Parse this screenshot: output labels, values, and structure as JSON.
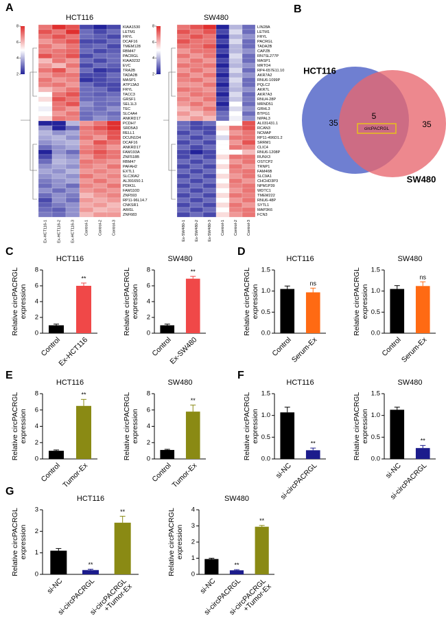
{
  "chart_data": [
    {
      "type": "heatmap",
      "panel": "A",
      "title": "HCT116",
      "rows": [
        "KIAA1530",
        "LETM1",
        "FRYL",
        "DCAF16",
        "TMEM128",
        "RBM47",
        "PACRGL",
        "KIAA0232",
        "EVC",
        "TRA2B",
        "TADA2B",
        "MASP1",
        "ATP13A3",
        "FRYL",
        "TACC3",
        "GRSF1",
        "SEL1L3",
        "TEC",
        "SLC4A4",
        "ANKRD17",
        "PCDH7",
        "SRD5A3",
        "RELL1",
        "DCUN1D4",
        "DCAF16",
        "ANKRD17",
        "FAM193A",
        "ZNF518B",
        "RBM47",
        "PAFAH2",
        "EXTL1",
        "SLC30A2",
        "AL391650.1",
        "PDIK1L",
        "FAM110D",
        "ZNF593",
        "RP11-96L14.7",
        "CNKSR1",
        "AIM1L",
        "ZNF683"
      ],
      "columns": [
        "Ex-HCT116-1",
        "Ex-HCT116-2",
        "Ex-HCT116-3",
        "Control-1",
        "Control-2",
        "Control-3"
      ],
      "values": [
        [
          7,
          8,
          7.5,
          2.5,
          2,
          2.5
        ],
        [
          7.5,
          7,
          8,
          3,
          2.5,
          3
        ],
        [
          7,
          7.5,
          7,
          3,
          2.8,
          2.5
        ],
        [
          6.5,
          7,
          7.5,
          2.5,
          2.5,
          3
        ],
        [
          7,
          6.5,
          7,
          2.8,
          3,
          2.5
        ],
        [
          6.8,
          7,
          7.2,
          3,
          2.5,
          2.8
        ],
        [
          7.5,
          7,
          7.5,
          2.5,
          3,
          3
        ],
        [
          6,
          7,
          6.5,
          3,
          2.5,
          3
        ],
        [
          6.5,
          6,
          7,
          2.5,
          3,
          2.8
        ],
        [
          7,
          7.5,
          6.5,
          3,
          2.2,
          2.5
        ],
        [
          6.5,
          7,
          7,
          2.5,
          2.5,
          3
        ],
        [
          7,
          6.5,
          6.8,
          2.2,
          2.5,
          2.8
        ],
        [
          6.8,
          7,
          6.5,
          3,
          2.5,
          2.5
        ],
        [
          6,
          6.5,
          7,
          3,
          3,
          2.5
        ],
        [
          5,
          7,
          7.5,
          3,
          2.8,
          3
        ],
        [
          5.5,
          7.5,
          7,
          3,
          3,
          3.2
        ],
        [
          5,
          7,
          7.5,
          3.5,
          3,
          3
        ],
        [
          4.8,
          7,
          6.5,
          3.2,
          3,
          3.5
        ],
        [
          5,
          6.5,
          7,
          3,
          3.2,
          3
        ],
        [
          5.5,
          7,
          6.8,
          3,
          3.5,
          3.2
        ],
        [
          2,
          1.5,
          4,
          6.5,
          7,
          8
        ],
        [
          3.5,
          2,
          3,
          7,
          7.5,
          8
        ],
        [
          4,
          3.5,
          3.8,
          6.8,
          7,
          7.5
        ],
        [
          3.8,
          4,
          3.5,
          7,
          6.5,
          7.5
        ],
        [
          3.5,
          3.8,
          4,
          6.5,
          7.5,
          7
        ],
        [
          3,
          3.5,
          3.8,
          6.8,
          7,
          6.5
        ],
        [
          2,
          3.5,
          3,
          7,
          7.5,
          7
        ],
        [
          2.5,
          3.8,
          3.5,
          6.5,
          7.2,
          7
        ],
        [
          3,
          4,
          3.8,
          7,
          6.8,
          6.5
        ],
        [
          3.5,
          3.8,
          3.5,
          6.8,
          6.5,
          7
        ],
        [
          3.8,
          3.5,
          4,
          6.5,
          6.8,
          6.5
        ],
        [
          3.5,
          3.8,
          3.5,
          7,
          6.5,
          6.8
        ],
        [
          3.2,
          3.5,
          3.8,
          6.5,
          7,
          6.5
        ],
        [
          3,
          3.5,
          3,
          6.8,
          6.5,
          7
        ],
        [
          3.5,
          3,
          3.5,
          6.5,
          6.8,
          6.5
        ],
        [
          3,
          3.5,
          3.2,
          6,
          6.5,
          6.8
        ],
        [
          2.5,
          3.5,
          3,
          6.5,
          6.2,
          6.5
        ],
        [
          2.8,
          3.2,
          3.5,
          6.2,
          6.5,
          6
        ],
        [
          3,
          2.8,
          3.5,
          6.5,
          6,
          6.2
        ],
        [
          3.2,
          3,
          3.5,
          6,
          6.5,
          6.5
        ]
      ],
      "clim": [
        2,
        8
      ],
      "cticks": [
        2,
        4,
        6,
        8
      ],
      "colors": [
        "#23239a",
        "#ffffff",
        "#e0302f"
      ],
      "highlight": "PACRGL",
      "highlight_color": "#ff0000"
    },
    {
      "type": "heatmap",
      "title": "SW480",
      "rows": [
        "LIN28A",
        "LETM1",
        "FRYL",
        "PACRGL",
        "TADA2B",
        "CAPZB",
        "RN7SL277P",
        "MASP1",
        "MRTO4",
        "RP4-657E11.10",
        "AKR7A2",
        "RNU6-1099P",
        "PQLC2",
        "AKR7L",
        "AKR7A3",
        "RNU4-28P",
        "MRND51",
        "GRHL3",
        "BTPG1",
        "NIPAL3",
        "AL031431.1",
        "RCAN3",
        "NCMAP",
        "RP11-496D1.2",
        "SRRM1",
        "CLIC4",
        "RNU6-1208P",
        "RUNX3",
        "OSTCP2",
        "TRNP1",
        "FAM46B",
        "SLC9A1",
        "CHCHD3P3",
        "NPM1P39",
        "WDTC1",
        "TMEM222",
        "RNU6-48P",
        "SYTL1",
        "MAP3K6",
        "FCN3"
      ],
      "columns": [
        "Ex-SW480-1",
        "Ex-SW480-2",
        "Ex-SW480-3",
        "Control-1",
        "Control-2",
        "Control-3"
      ],
      "values": [
        [
          7,
          7.5,
          8,
          2,
          4,
          3
        ],
        [
          7.5,
          7,
          7.5,
          2.5,
          4.5,
          3
        ],
        [
          7,
          7.5,
          7,
          2,
          4,
          3.5
        ],
        [
          7.5,
          7,
          7,
          2.5,
          4.5,
          3
        ],
        [
          7,
          7,
          7.5,
          2,
          4,
          3
        ],
        [
          6.5,
          7,
          7,
          2.5,
          4,
          3.5
        ],
        [
          7,
          6.5,
          7,
          2,
          4.5,
          3
        ],
        [
          6.5,
          7,
          6.5,
          2.5,
          4.2,
          3
        ],
        [
          7,
          6.8,
          7,
          2,
          4,
          3.5
        ],
        [
          6.5,
          7,
          6.5,
          2.5,
          4.5,
          3
        ],
        [
          7,
          6.5,
          7,
          2,
          4,
          3.5
        ],
        [
          6.8,
          7,
          6.5,
          2.5,
          4.5,
          3
        ],
        [
          6.5,
          6.5,
          7,
          2,
          4.2,
          3
        ],
        [
          7,
          6.8,
          6.5,
          2.5,
          4,
          3.5
        ],
        [
          6.5,
          7,
          6.8,
          2,
          4.5,
          3
        ],
        [
          6.8,
          6.5,
          7,
          2.5,
          4.2,
          3.2
        ],
        [
          6.5,
          7,
          6.5,
          2,
          5,
          3
        ],
        [
          6,
          6.5,
          7,
          2.5,
          4.5,
          3.5
        ],
        [
          6.5,
          6,
          6.5,
          3,
          5,
          3
        ],
        [
          6,
          6.5,
          6,
          3,
          4.8,
          3.5
        ],
        [
          3,
          2.5,
          3,
          5,
          5,
          7.5
        ],
        [
          3,
          2.5,
          2.5,
          5.5,
          7,
          7.5
        ],
        [
          2.5,
          3,
          2.5,
          5,
          6.5,
          7
        ],
        [
          3,
          2.5,
          3,
          4.5,
          7,
          7
        ],
        [
          2.5,
          3,
          2.5,
          5,
          6.5,
          7.5
        ],
        [
          3,
          2.5,
          3,
          5,
          7,
          6.8
        ],
        [
          2.5,
          2,
          2.5,
          5,
          5,
          6
        ],
        [
          2.5,
          3,
          2.5,
          5.5,
          7,
          7
        ],
        [
          3,
          2.5,
          3,
          5,
          6.5,
          7
        ],
        [
          2.5,
          3,
          2.5,
          5.5,
          7,
          6.5
        ],
        [
          3,
          2.5,
          3,
          5,
          6.8,
          7
        ],
        [
          2.5,
          3,
          2.5,
          5.5,
          6.5,
          7
        ],
        [
          3,
          2.5,
          3,
          5,
          7,
          6.5
        ],
        [
          2.5,
          3,
          2.5,
          5.5,
          6.8,
          7
        ],
        [
          3,
          2.5,
          3,
          5,
          6.5,
          7
        ],
        [
          2.5,
          3,
          2.5,
          5.5,
          7,
          6.8
        ],
        [
          3,
          2.5,
          3,
          5,
          6.5,
          7
        ],
        [
          2.5,
          3,
          2.5,
          5.5,
          7,
          6.5
        ],
        [
          3,
          2.5,
          3,
          5,
          6.8,
          7
        ],
        [
          2.5,
          3,
          2.5,
          5.5,
          6.5,
          7
        ]
      ],
      "clim": [
        2,
        8
      ],
      "cticks": [
        2,
        4,
        6,
        8
      ],
      "colors": [
        "#23239a",
        "#ffffff",
        "#e0302f"
      ],
      "highlight": "PACRGL",
      "highlight_color": "#ff0000"
    },
    {
      "type": "venn",
      "panel": "B",
      "sets": [
        "HCT116",
        "SW480"
      ],
      "colors": [
        "#6f7fd1",
        "#e8676e"
      ],
      "counts": [
        35,
        5,
        35
      ],
      "label": "circPACRGL",
      "label_color": "#e8c21a"
    },
    {
      "type": "bar",
      "panel": "C",
      "title": "HCT116",
      "ylabel": "Relative circPACRGL\nexpression",
      "categories": [
        "Control",
        "Ex-HCT116"
      ],
      "values": [
        1.0,
        6.0
      ],
      "errors": [
        0.15,
        0.35
      ],
      "sig": [
        null,
        "**"
      ],
      "colors": [
        "#000000",
        "#f04848"
      ],
      "ylim": [
        0,
        8
      ],
      "yticks": [
        0,
        2,
        4,
        6,
        8
      ]
    },
    {
      "type": "bar",
      "title": "SW480",
      "ylabel": "Relative circPACRGL\nexpression",
      "categories": [
        "Control",
        "Ex-SW480"
      ],
      "values": [
        1.0,
        6.9
      ],
      "errors": [
        0.15,
        0.3
      ],
      "sig": [
        null,
        "**"
      ],
      "colors": [
        "#000000",
        "#f04848"
      ],
      "ylim": [
        0,
        8
      ],
      "yticks": [
        0,
        2,
        4,
        6,
        8
      ]
    },
    {
      "type": "bar",
      "panel": "D",
      "title": "HCT116",
      "ylabel": "Relative circPACRGL\nexpression",
      "categories": [
        "Control",
        "Serum-Ex"
      ],
      "values": [
        1.05,
        0.97
      ],
      "errors": [
        0.07,
        0.1
      ],
      "sig": [
        null,
        "ns"
      ],
      "colors": [
        "#000000",
        "#ff6a13"
      ],
      "ylim": [
        0,
        1.5
      ],
      "yticks": [
        {
          "value": 0,
          "label": "0.0"
        },
        0.5,
        {
          "value": 1,
          "label": "1.0"
        },
        1.5
      ]
    },
    {
      "type": "bar",
      "title": "SW480",
      "ylabel": "Relative circPACRGL\nexpression",
      "categories": [
        "Control",
        "Serum-Ex"
      ],
      "values": [
        1.05,
        1.12
      ],
      "errors": [
        0.08,
        0.1
      ],
      "sig": [
        null,
        "ns"
      ],
      "colors": [
        "#000000",
        "#ff6a13"
      ],
      "ylim": [
        0,
        1.5
      ],
      "yticks": [
        {
          "value": 0,
          "label": "0.0"
        },
        0.5,
        {
          "value": 1,
          "label": "1.0"
        },
        1.5
      ]
    },
    {
      "type": "bar",
      "panel": "E",
      "title": "HCT116",
      "ylabel": "Relative circPACRGL\nexpression",
      "categories": [
        "Control",
        "Tumor-Ex"
      ],
      "values": [
        1.0,
        6.5
      ],
      "errors": [
        0.1,
        0.8
      ],
      "sig": [
        null,
        "**"
      ],
      "colors": [
        "#000000",
        "#8a8a14"
      ],
      "ylim": [
        0,
        8
      ],
      "yticks": [
        0,
        2,
        4,
        6,
        8
      ]
    },
    {
      "type": "bar",
      "title": "SW480",
      "ylabel": "Relative circPACRGL\nexpression",
      "categories": [
        "Control",
        "Tumor-Ex"
      ],
      "values": [
        1.1,
        5.8
      ],
      "errors": [
        0.08,
        0.8
      ],
      "sig": [
        null,
        "**"
      ],
      "colors": [
        "#000000",
        "#8a8a14"
      ],
      "ylim": [
        0,
        8
      ],
      "yticks": [
        0,
        2,
        4,
        6,
        8
      ]
    },
    {
      "type": "bar",
      "panel": "F",
      "title": "HCT116",
      "ylabel": "Relative circPACRGL\nexpression",
      "categories": [
        "si-NC",
        "si-circPACRGL"
      ],
      "values": [
        1.07,
        0.2
      ],
      "errors": [
        0.12,
        0.05
      ],
      "sig": [
        null,
        "**"
      ],
      "colors": [
        "#000000",
        "#1c1c8c"
      ],
      "ylim": [
        0,
        1.5
      ],
      "yticks": [
        {
          "value": 0,
          "label": "0.0"
        },
        0.5,
        {
          "value": 1,
          "label": "1.0"
        },
        1.5
      ]
    },
    {
      "type": "bar",
      "title": "SW480",
      "ylabel": "Relative circPACRGL\nexpression",
      "categories": [
        "si-NC",
        "si-circPACRGL"
      ],
      "values": [
        1.13,
        0.25
      ],
      "errors": [
        0.06,
        0.06
      ],
      "sig": [
        null,
        "**"
      ],
      "colors": [
        "#000000",
        "#1c1c8c"
      ],
      "ylim": [
        0,
        1.5
      ],
      "yticks": [
        {
          "value": 0,
          "label": "0.0"
        },
        0.5,
        {
          "value": 1,
          "label": "1.0"
        },
        1.5
      ]
    },
    {
      "type": "bar",
      "panel": "G",
      "title": "HCT116",
      "ylabel": "Relative circPACRGL\nexpression",
      "categories": [
        "si-NC",
        "si-circPACRGL",
        "si-circPACRGL\n+Tumor-Ex"
      ],
      "values": [
        1.1,
        0.2,
        2.4
      ],
      "errors": [
        0.1,
        0.04,
        0.3
      ],
      "sig": [
        null,
        "**",
        "**"
      ],
      "colors": [
        "#000000",
        "#1c1c8c",
        "#8a8a14"
      ],
      "ylim": [
        0,
        3
      ],
      "yticks": [
        0,
        1,
        2,
        3
      ]
    },
    {
      "type": "bar",
      "title": "SW480",
      "ylabel": "Relative circPACRGL\nexpression",
      "categories": [
        "si-NC",
        "si-circPACRGL",
        "si-circPACRGL\n+Tumor-Ex"
      ],
      "values": [
        0.95,
        0.25,
        2.95
      ],
      "errors": [
        0.05,
        0.04,
        0.08
      ],
      "sig": [
        null,
        "**",
        "**"
      ],
      "colors": [
        "#000000",
        "#1c1c8c",
        "#8a8a14"
      ],
      "ylim": [
        0,
        4
      ],
      "yticks": [
        0,
        1,
        2,
        3,
        4
      ]
    }
  ]
}
